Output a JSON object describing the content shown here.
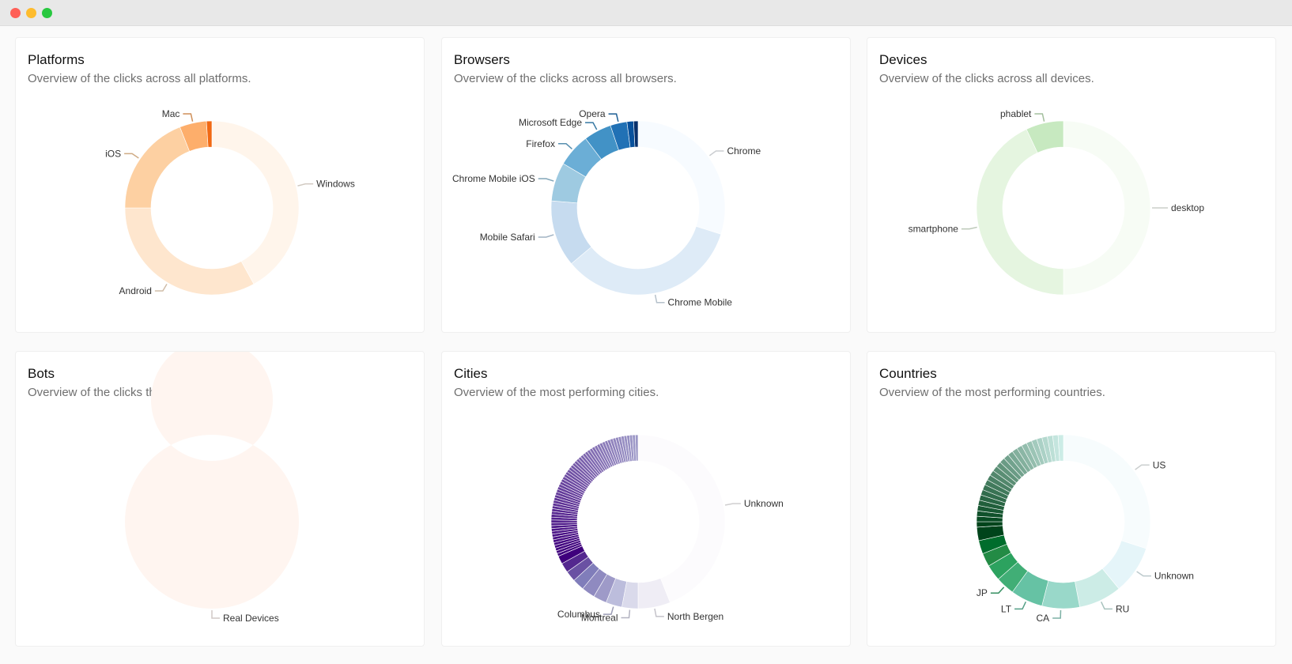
{
  "cards": [
    {
      "title": "Platforms",
      "subtitle": "Overview of the clicks across all platforms.",
      "chart_data": {
        "type": "pie",
        "donut": true,
        "slices": [
          {
            "label": "Windows",
            "value": 42,
            "color": "#fff5eb"
          },
          {
            "label": "Android",
            "value": 33,
            "color": "#fee6ce"
          },
          {
            "label": "iOS",
            "value": 19,
            "color": "#fdd0a2"
          },
          {
            "label": "Mac",
            "value": 5,
            "color": "#fdae6b"
          },
          {
            "label": "",
            "value": 1,
            "color": "#f16913"
          }
        ]
      }
    },
    {
      "title": "Browsers",
      "subtitle": "Overview of the clicks across all browsers.",
      "chart_data": {
        "type": "pie",
        "donut": true,
        "slices": [
          {
            "label": "Chrome",
            "value": 29,
            "color": "#f7fbff"
          },
          {
            "label": "Chrome Mobile",
            "value": 33,
            "color": "#deebf7"
          },
          {
            "label": "Mobile Safari",
            "value": 12,
            "color": "#c6dbef"
          },
          {
            "label": "Chrome Mobile iOS",
            "value": 7,
            "color": "#9ecae1"
          },
          {
            "label": "Firefox",
            "value": 6,
            "color": "#6baed6"
          },
          {
            "label": "Microsoft Edge",
            "value": 5,
            "color": "#4292c6"
          },
          {
            "label": "Opera",
            "value": 3,
            "color": "#2171b5"
          },
          {
            "label": "",
            "value": 1.2,
            "color": "#08519c"
          },
          {
            "label": "",
            "value": 0.8,
            "color": "#08306b"
          }
        ]
      }
    },
    {
      "title": "Devices",
      "subtitle": "Overview of the clicks across all devices.",
      "chart_data": {
        "type": "pie",
        "donut": true,
        "slices": [
          {
            "label": "desktop",
            "value": 50,
            "color": "#f7fcf5"
          },
          {
            "label": "smartphone",
            "value": 43,
            "color": "#e5f5e0"
          },
          {
            "label": "phablet",
            "value": 7,
            "color": "#c7e9c0"
          }
        ]
      }
    },
    {
      "title": "Bots",
      "subtitle": "Overview of the clicks that derived from bots.",
      "chart_data": {
        "type": "pie",
        "donut": true,
        "slices": [
          {
            "label": "Real Devices",
            "value": 100,
            "color": "#fff5f0"
          }
        ]
      }
    },
    {
      "title": "Cities",
      "subtitle": "Overview of the most performing cities.",
      "chart_data": {
        "type": "pie",
        "donut": true,
        "slices": [
          {
            "label": "Unknown",
            "value": 44,
            "color": "#fcfbfd"
          },
          {
            "label": "North Bergen",
            "value": 6,
            "color": "#efedf5"
          },
          {
            "label": "Montreal",
            "value": 3,
            "color": "#dadaeb"
          },
          {
            "label": "Columbus",
            "value": 3,
            "color": "#bcbddc"
          },
          {
            "label": "",
            "value": 2.5,
            "color": "#9e9ac8"
          },
          {
            "label": "",
            "value": 2.5,
            "color": "#8f8ac0"
          },
          {
            "label": "",
            "value": 2.2,
            "color": "#807dba"
          },
          {
            "label": "",
            "value": 2,
            "color": "#6a51a3"
          },
          {
            "label": "",
            "value": 1.8,
            "color": "#54278f"
          },
          {
            "label": "",
            "value": 1.5,
            "color": "#3f007d"
          }
        ],
        "tail": {
          "count": 60,
          "value": 0.525,
          "colors": [
            "#3f007d",
            "#9e9ac8"
          ]
        }
      }
    },
    {
      "title": "Countries",
      "subtitle": "Overview of the most performing countries.",
      "chart_data": {
        "type": "pie",
        "donut": true,
        "slices": [
          {
            "label": "US",
            "value": 30,
            "color": "#f7fcfd"
          },
          {
            "label": "Unknown",
            "value": 9,
            "color": "#e5f5f9"
          },
          {
            "label": "RU",
            "value": 8,
            "color": "#ccece6"
          },
          {
            "label": "CA",
            "value": 7,
            "color": "#99d8c9"
          },
          {
            "label": "LT",
            "value": 6,
            "color": "#66c2a4"
          },
          {
            "label": "JP",
            "value": 3.5,
            "color": "#41ae76"
          },
          {
            "label": "",
            "value": 3,
            "color": "#2ca25f"
          },
          {
            "label": "",
            "value": 2.5,
            "color": "#238b45"
          },
          {
            "label": "",
            "value": 2.5,
            "color": "#006d2c"
          },
          {
            "label": "",
            "value": 2.5,
            "color": "#00441b"
          }
        ],
        "tail": {
          "count": 26,
          "value": 1.0,
          "colors": [
            "#00441b",
            "#ccece6"
          ]
        }
      }
    }
  ]
}
